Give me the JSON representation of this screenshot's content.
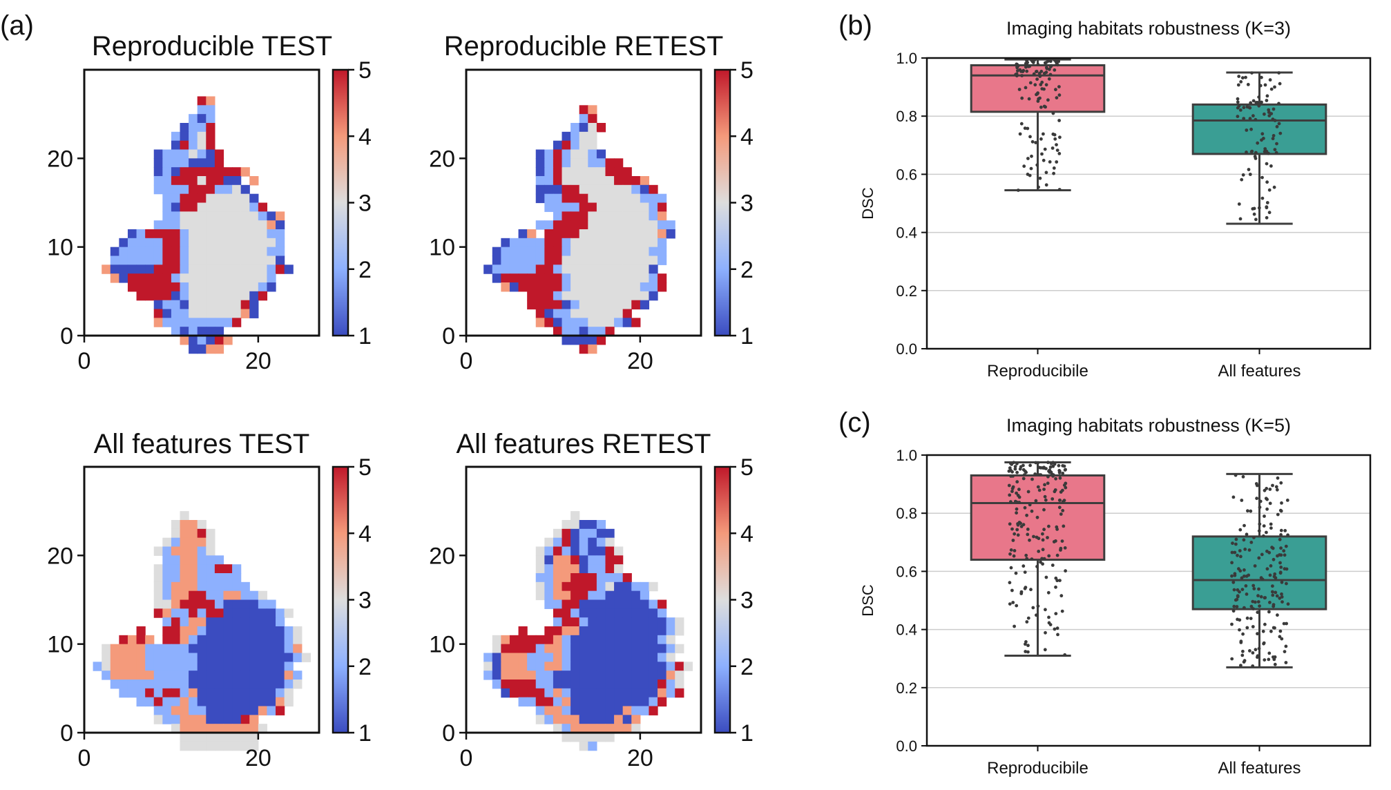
{
  "panel_labels": {
    "a": "(a)",
    "b": "(b)",
    "c": "(c)"
  },
  "chart_data": [
    {
      "type": "heatmap",
      "title": "Reproducible TEST",
      "xticks": [
        0,
        20
      ],
      "yticks": [
        0,
        10,
        20
      ],
      "xlim": [
        0,
        27
      ],
      "ylim": [
        0,
        30
      ],
      "colorbar": {
        "ticks": [
          1,
          2,
          3,
          4,
          5
        ],
        "range": [
          1,
          5
        ]
      },
      "colormap": {
        "1": "#3b4cc0",
        "2": "#8db0fe",
        "3": "#dddddd",
        "4": "#f49a7b",
        "5": "#c0182a"
      },
      "grid": [
        "...........................",
        "...........................",
        "...........................",
        ".............54............",
        ".............22............",
        "............212............",
        "...........1225............",
        "..........21235............",
        "..........15235............",
        "........12223215...........",
        "........12221115...........",
        "........12155555554........",
        "........2255535511.4.......",
        "........22225552231........",
        ".........22555333331.......",
        ".........215533333325......",
        ".........22333333333214....",
        "........222333333333341....",
        ".....125555233333333322....",
        "....1222255233333333332....",
        "...12222255233333333322....",
        "...22222255233333333331....",
        "..4111115552333333333251...",
        "...4155555233333333332.....",
        ".....55555523333333321.....",
        "......555512333333315......",
        "........122133333351.......",
        "........512233333341.......",
        "........4222222225.........",
        "..........212111...........",
        "...........412154..........",
        "............1144..........."
      ]
    },
    {
      "type": "heatmap",
      "title": "Reproducible RETEST",
      "xticks": [
        0,
        20
      ],
      "yticks": [
        0,
        10,
        20
      ],
      "xlim": [
        0,
        27
      ],
      "ylim": [
        0,
        30
      ],
      "colorbar": {
        "ticks": [
          1,
          2,
          3,
          4,
          5
        ],
        "range": [
          1,
          5
        ]
      },
      "colormap": {
        "1": "#3b4cc0",
        "2": "#8db0fe",
        "3": "#dddddd",
        "4": "#f49a7b",
        "5": "#c0182a"
      },
      "grid": [
        "...........................",
        "...........................",
        "...........................",
        "...........................",
        ".............54............",
        ".............25............",
        "............2135...........",
        "...........1233............",
        "..........15233............",
        "........12523321...........",
        "........1252332255.........",
        "........12533333555........",
        "........2253333335554......",
        "........11155333333215.....",
        "........122555333333222....",
        ".........22225533333325....",
        "..........2555333333324....",
        "........2255553333333322...",
        "......14.555533333333341...",
        "....1222255233333333332....",
        "...12222255233333333322....",
        "...12222255333333333332....",
        "..12222255233333333331.....",
        "...15555555233333333325....",
        "....4155555233333333225....",
        ".......555233333333331.....",
        ".......55551233333351......",
        "........51223333335........",
        "........451222333215.......",
        "..........5221225..........",
        "...........11115...........",
        ".............54............"
      ]
    },
    {
      "type": "heatmap",
      "title": "All features TEST",
      "xticks": [
        0,
        20
      ],
      "yticks": [
        0,
        10,
        20
      ],
      "xlim": [
        0,
        27
      ],
      "ylim": [
        0,
        30
      ],
      "colorbar": {
        "ticks": [
          1,
          2,
          3,
          4,
          5
        ],
        "range": [
          1,
          5
        ]
      },
      "colormap": {
        "1": "#3b4cc0",
        "2": "#8db0fe",
        "3": "#dddddd",
        "4": "#f49a7b",
        "5": "#c0182a"
      },
      "grid": [
        "...........................",
        "...........................",
        "...........................",
        "...........................",
        "...........................",
        "...........3...............",
        "..........3443.............",
        "..........34453............",
        ".........324443............",
        "........3244423............",
        ".........2244222...........",
        "........3224422552.........",
        "........3224422222.........",
        "........32444222222.........",
        "........3244552244223......",
        "........33455552111122.....",
        "........5422525511111123...",
        ".........25244111111112....",
        "......5..5544211111111123..",
        "....5454.5542111111111123..",
        "..34444222221111111111124..",
        "..344442222221111111111123.",
        ".23444422222211111111112...",
        "..24444422221111111111142..",
        "...2222222221111111111123..",
        "....22252552411111111123...",
        "......225224211111111143...",
        "........224422111111425....",
        "........322444111154.......",
        "..........34444444443......",
        "...........333333333.......",
        "...........333333333......."
      ]
    },
    {
      "type": "heatmap",
      "title": "All features RETEST",
      "xticks": [
        0,
        20
      ],
      "yticks": [
        0,
        10,
        20
      ],
      "xlim": [
        0,
        27
      ],
      "ylim": [
        0,
        30
      ],
      "colorbar": {
        "ticks": [
          1,
          2,
          3,
          4,
          5
        ],
        "range": [
          1,
          5
        ]
      },
      "colormap": {
        "1": "#3b4cc0",
        "2": "#8db0fe",
        "3": "#dddddd",
        "4": "#f49a7b",
        "5": "#c0182a"
      },
      "grid": [
        "...........................",
        "...........................",
        "...........................",
        "...........................",
        "...........................",
        "............3..............",
        "...........33112...........",
        "..........3512211..........",
        ".........32512123..........",
        "........3252121153.........",
        "........3144512255.........",
        "........3244412253.........",
        "........22445552225.........",
        "........32455552311223......",
        "........3244552211112.......",
        ".........22551111111125......",
        "..........5521111111112.....",
        "..........255211111111123...",
        "......5..5544111111111123...",
        "...345555542111111111123....",
        "...3555524421111111111123...",
        "..2144422242111111111123....",
        "..314442244211111111111253..",
        "..21444422111111111111143...",
        "...2555522111111111111523...",
        "....155552421111111111425...",
        "......22552411111111125.....",
        "........24421111114225......",
        "........324441111414........",
        "..........3244444443........",
        "...........333333..........",
        ".............32............."
      ]
    },
    {
      "type": "box",
      "title": "Imaging habitats robustness (K=3)",
      "xlabel": "",
      "ylabel": "DSC",
      "ylim": [
        0.0,
        1.0
      ],
      "yticks": [
        "0.0",
        "0.2",
        "0.4",
        "0.6",
        "0.8",
        "1.0"
      ],
      "grid": "horizontal",
      "categories": [
        "Reproducibile",
        "All features"
      ],
      "series": [
        {
          "color": "#e8778a",
          "min": 0.545,
          "q1": 0.815,
          "median": 0.94,
          "q3": 0.975,
          "max": 0.995,
          "n": 120,
          "spread": 0.1,
          "seed": 11
        },
        {
          "color": "#3a9e94",
          "min": 0.43,
          "q1": 0.67,
          "median": 0.785,
          "q3": 0.84,
          "max": 0.95,
          "n": 95,
          "spread": 0.1,
          "seed": 23
        }
      ]
    },
    {
      "type": "box",
      "title": "Imaging habitats robustness (K=5)",
      "xlabel": "",
      "ylabel": "DSC",
      "ylim": [
        0.0,
        1.0
      ],
      "yticks": [
        "0.0",
        "0.2",
        "0.4",
        "0.6",
        "0.8",
        "1.0"
      ],
      "grid": "horizontal",
      "categories": [
        "Reproducibile",
        "All features"
      ],
      "series": [
        {
          "color": "#e8778a",
          "min": 0.31,
          "q1": 0.64,
          "median": 0.835,
          "q3": 0.93,
          "max": 0.975,
          "n": 200,
          "spread": 0.13,
          "seed": 37
        },
        {
          "color": "#3a9e94",
          "min": 0.27,
          "q1": 0.47,
          "median": 0.57,
          "q3": 0.72,
          "max": 0.935,
          "n": 190,
          "spread": 0.13,
          "seed": 53
        }
      ]
    }
  ]
}
